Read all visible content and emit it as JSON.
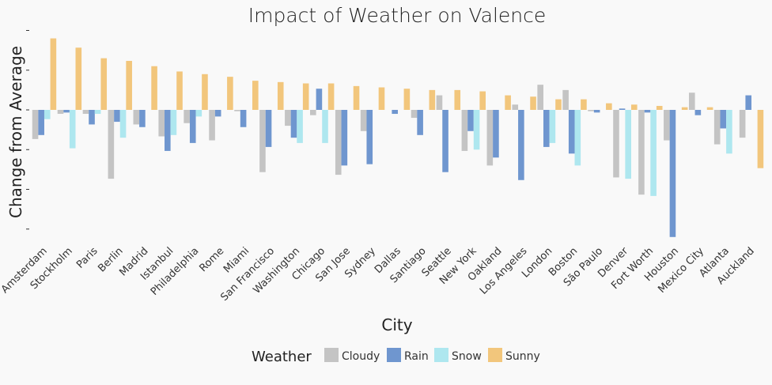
{
  "chart_data": {
    "type": "bar",
    "title": "Impact of Weather on Valence",
    "xlabel": "City",
    "ylabel": "Change from Average",
    "ylim": [
      -0.1,
      0.06
    ],
    "y_tick_labels_visible": false,
    "grid": false,
    "legend": {
      "title": "Weather",
      "position": "bottom"
    },
    "categories": [
      "Amsterdam",
      "Stockholm",
      "Paris",
      "Berlin",
      "Madrid",
      "Istanbul",
      "Philadelphia",
      "Rome",
      "Miami",
      "San Francisco",
      "Washington",
      "Chicago",
      "San Jose",
      "Sydney",
      "Dallas",
      "Santiago",
      "Seattle",
      "New York",
      "Oakland",
      "Los Angeles",
      "London",
      "Boston",
      "São Paulo",
      "Denver",
      "Fort Worth",
      "Houston",
      "Mexico City",
      "Atlanta",
      "Auckland"
    ],
    "series": [
      {
        "name": "Cloudy",
        "color": "#c4c4c4",
        "values": [
          -0.022,
          -0.003,
          -0.003,
          -0.052,
          -0.011,
          -0.02,
          -0.01,
          -0.023,
          -0.001,
          -0.047,
          -0.012,
          -0.004,
          -0.049,
          -0.016,
          0.0,
          -0.006,
          0.011,
          -0.031,
          -0.042,
          0.004,
          0.019,
          0.015,
          -0.001,
          -0.051,
          -0.064,
          -0.023,
          0.013,
          -0.026,
          -0.021
        ]
      },
      {
        "name": "Rain",
        "color": "#6f96cf",
        "values": [
          -0.019,
          -0.002,
          -0.011,
          -0.009,
          -0.013,
          -0.031,
          -0.025,
          -0.005,
          -0.013,
          -0.028,
          -0.021,
          0.016,
          -0.042,
          -0.041,
          -0.003,
          -0.019,
          -0.047,
          -0.016,
          -0.036,
          -0.053,
          -0.028,
          -0.033,
          -0.002,
          0.001,
          -0.002,
          -0.096,
          -0.004,
          -0.014,
          0.011
        ]
      },
      {
        "name": "Snow",
        "color": "#aee7ef",
        "values": [
          -0.007,
          -0.029,
          -0.003,
          -0.021,
          0.0,
          -0.019,
          -0.005,
          0.0,
          0.0,
          0.0,
          -0.025,
          -0.025,
          0.0,
          0.0,
          0.0,
          0.0,
          0.0,
          -0.03,
          0.0,
          0.0,
          -0.025,
          -0.042,
          0.0,
          -0.052,
          -0.065,
          0.0,
          0.0,
          -0.033,
          0.0
        ]
      },
      {
        "name": "Sunny",
        "color": "#f2c67c",
        "values": [
          0.054,
          0.047,
          0.039,
          0.037,
          0.033,
          0.029,
          0.027,
          0.025,
          0.022,
          0.021,
          0.02,
          0.02,
          0.018,
          0.017,
          0.016,
          0.015,
          0.015,
          0.014,
          0.011,
          0.01,
          0.008,
          0.008,
          0.005,
          0.004,
          0.003,
          0.002,
          0.002,
          0.0,
          -0.044
        ]
      }
    ]
  }
}
